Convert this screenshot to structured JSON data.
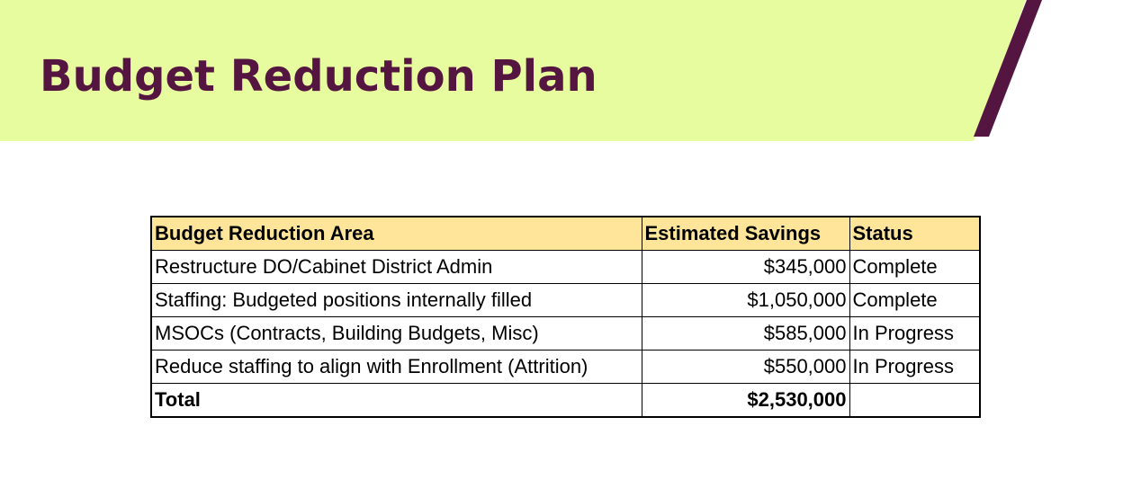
{
  "slide": {
    "title": "Budget Reduction Plan",
    "colors": {
      "banner": "#e6fc9f",
      "accent": "#541540",
      "header_fill": "#ffe59a"
    }
  },
  "table": {
    "headers": [
      "Budget Reduction Area",
      "Estimated Savings",
      "Status"
    ],
    "rows": [
      [
        "Restructure DO/Cabinet District Admin",
        "$345,000",
        "Complete"
      ],
      [
        "Staffing: Budgeted positions internally filled",
        "$1,050,000",
        "Complete"
      ],
      [
        "MSOCs (Contracts, Building Budgets, Misc)",
        "$585,000",
        "In Progress"
      ],
      [
        "Reduce staffing to align with Enrollment (Attrition)",
        "$550,000",
        "In Progress"
      ]
    ],
    "total": [
      "Total",
      "$2,530,000",
      ""
    ]
  }
}
